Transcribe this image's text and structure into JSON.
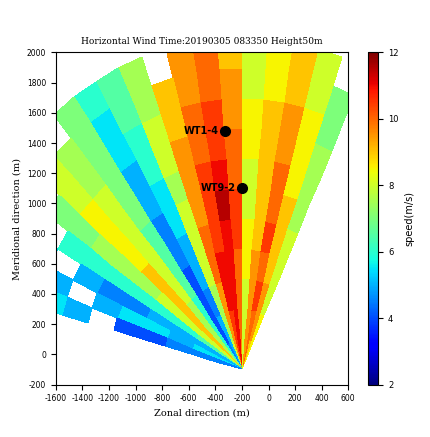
{
  "chart_data": {
    "type": "heatmap",
    "title": "Horizontal Wind Time:20190305 083350 Height50m",
    "x_label": "Zonal direction (m)",
    "y_label": "Meridional direction (m)",
    "colorbar_label": "speed(m/s)",
    "xlim": [
      -1600,
      600
    ],
    "xticks": [
      -1600,
      -1400,
      -1200,
      -1000,
      -800,
      -600,
      -400,
      -200,
      0,
      200,
      400,
      600
    ],
    "ylim": [
      -200,
      2000
    ],
    "yticks": [
      -200,
      0,
      200,
      400,
      600,
      800,
      1000,
      1200,
      1400,
      1600,
      1800,
      2000
    ],
    "colorbar_range": [
      2,
      12
    ],
    "colorbar_ticks": [
      2,
      4,
      6,
      8,
      10,
      12
    ],
    "origin": [
      -200,
      -100
    ],
    "azimuth_edges": [
      65,
      70,
      75,
      80,
      85,
      90,
      95,
      100,
      105,
      110,
      115,
      120,
      125,
      130,
      135,
      140,
      145,
      150,
      155,
      160,
      165
    ],
    "range_edges": [
      0,
      200,
      400,
      600,
      800,
      1000,
      1200,
      1400,
      1600,
      1800,
      2000,
      2200
    ],
    "cells": [
      [
        8.5,
        9,
        10,
        9.5,
        8,
        9.5,
        11,
        10.5,
        9.5,
        8,
        5,
        4.5,
        6,
        7.5,
        9,
        8,
        6.5,
        5,
        5.5,
        4.5
      ],
      [
        8.5,
        9.5,
        10,
        9.5,
        8,
        10,
        11,
        10.5,
        9.5,
        7.5,
        5,
        4,
        6,
        7.5,
        9,
        8,
        6.5,
        5,
        5.5,
        4.5
      ],
      [
        8,
        9.5,
        10.5,
        9.5,
        8,
        10,
        11,
        11,
        9.5,
        7.5,
        4.5,
        4,
        6,
        7.5,
        9,
        8,
        6,
        5,
        5,
        4.5
      ],
      [
        8,
        9,
        10,
        9.5,
        8.5,
        10,
        11,
        11,
        10,
        8,
        5,
        4,
        6.5,
        8,
        9,
        8,
        6,
        5,
        5.5,
        4
      ],
      [
        8,
        9,
        10.5,
        9,
        8.5,
        10.5,
        11,
        10.5,
        10,
        8,
        5,
        4.5,
        6.5,
        8,
        9,
        7.5,
        6,
        4.5,
        5.5,
        4
      ],
      [
        7.5,
        9,
        10,
        9,
        8,
        10.5,
        11.5,
        10.5,
        9.5,
        8,
        5.5,
        4.5,
        6.5,
        8,
        8.5,
        7.5,
        6,
        4.5,
        5,
        null
      ],
      [
        7.5,
        8.5,
        10,
        9,
        8,
        10,
        11,
        10.5,
        9.5,
        7.5,
        5.5,
        5,
        7,
        8,
        8.5,
        7.5,
        6,
        5,
        null,
        5
      ],
      [
        7.5,
        8.5,
        9.5,
        9,
        8.5,
        10,
        10.5,
        10,
        9.5,
        8,
        6,
        5,
        7,
        8,
        8.5,
        7,
        6,
        null,
        5,
        5.5
      ],
      [
        7,
        8.5,
        9.5,
        9,
        8.5,
        9.5,
        10.5,
        10,
        9,
        8,
        6,
        5.5,
        7,
        7.5,
        8,
        7,
        null,
        5.5,
        null,
        5.5
      ],
      [
        7,
        8,
        9,
        8.5,
        8,
        9.5,
        10,
        9.5,
        9,
        7.5,
        6.5,
        5.5,
        7,
        7.5,
        8,
        null,
        6,
        null,
        5.5,
        null
      ],
      [
        null,
        8,
        9,
        8.5,
        8,
        9,
        10,
        9.5,
        null,
        7.5,
        6.5,
        6,
        7,
        null,
        7.5,
        7,
        null,
        6,
        null,
        5
      ]
    ],
    "annotations": [
      {
        "text": "WT1-4",
        "x": -330,
        "y": 1480
      },
      {
        "text": "WT9-2",
        "x": -200,
        "y": 1100
      }
    ]
  }
}
